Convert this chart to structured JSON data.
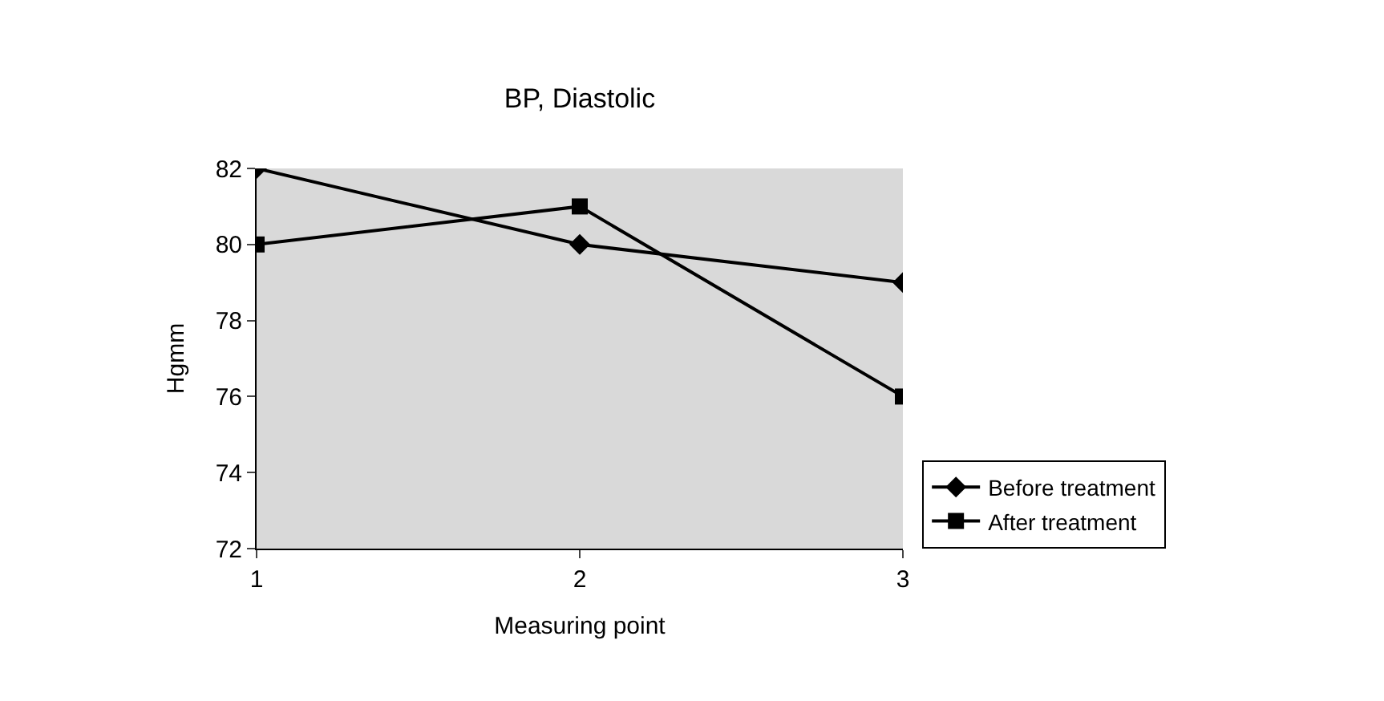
{
  "chart_data": {
    "type": "line",
    "title": "BP, Diastolic",
    "xlabel": "Measuring point",
    "ylabel": "Hgmm",
    "categories": [
      "1",
      "2",
      "3"
    ],
    "series": [
      {
        "name": "Before treatment",
        "color": "#000000",
        "marker": "diamond",
        "values": [
          82,
          80,
          79
        ]
      },
      {
        "name": "After treatment",
        "color": "#000000",
        "marker": "square",
        "values": [
          80,
          81,
          76
        ]
      }
    ],
    "ylim": [
      72,
      82
    ],
    "yticks": [
      72,
      74,
      76,
      78,
      80,
      82
    ],
    "grid": false,
    "legend": "right",
    "line_style": "solid"
  }
}
